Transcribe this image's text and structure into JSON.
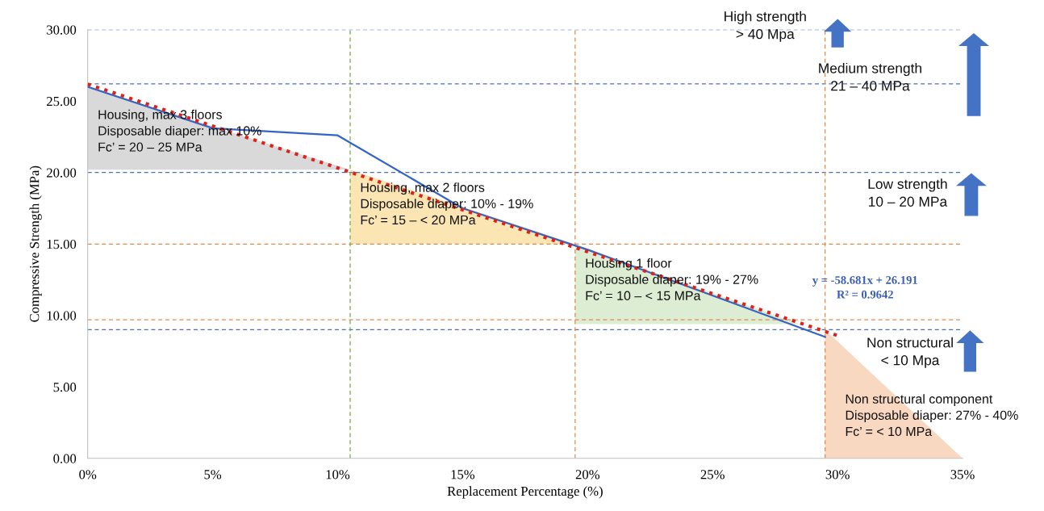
{
  "chart_data": {
    "type": "line",
    "xlabel": "Replacement Percentage (%)",
    "ylabel": "Compressive Strength (MPa)",
    "xlim": [
      0,
      35
    ],
    "xticks": [
      {
        "value": 0,
        "label": "0%"
      },
      {
        "value": 5,
        "label": "5%"
      },
      {
        "value": 10,
        "label": "10%"
      },
      {
        "value": 15,
        "label": "15%"
      },
      {
        "value": 20,
        "label": "20%"
      },
      {
        "value": 25,
        "label": "25%"
      },
      {
        "value": 30,
        "label": "30%"
      },
      {
        "value": 35,
        "label": "35%"
      }
    ],
    "ylim": [
      0,
      30
    ],
    "yticks": [
      {
        "value": 0,
        "label": "0.00"
      },
      {
        "value": 5,
        "label": "5.00"
      },
      {
        "value": 10,
        "label": "10.00"
      },
      {
        "value": 15,
        "label": "15.00"
      },
      {
        "value": 20,
        "label": "20.00"
      },
      {
        "value": 25,
        "label": "25.00"
      },
      {
        "value": 30,
        "label": "30.00"
      }
    ],
    "grid": false,
    "series": [
      {
        "type": "area",
        "color": "#d9d9d9",
        "x": [
          0,
          0,
          10.5
        ],
        "values": [
          26.0,
          20.2,
          20.2
        ]
      },
      {
        "type": "area",
        "color": "#fbe5b3",
        "x": [
          10.5,
          10.5,
          19.5
        ],
        "values": [
          20.2,
          15.0,
          15.0
        ]
      },
      {
        "type": "area",
        "color": "#dcedd3",
        "x": [
          19.5,
          19.5,
          28.5
        ],
        "values": [
          15.0,
          9.4,
          9.4
        ]
      },
      {
        "type": "area",
        "color": "#f9d8c2",
        "x": [
          29.5,
          29.5,
          35
        ],
        "values": [
          9.0,
          0,
          0
        ]
      },
      {
        "color": "#3464c4",
        "line_style": "solid",
        "x": [
          0,
          5,
          10,
          15,
          20,
          29.5
        ],
        "values": [
          26.0,
          23.1,
          22.6,
          17.5,
          14.6,
          8.5
        ]
      },
      {
        "color": "#e0201b",
        "line_style": "dotted",
        "x": [
          0,
          30
        ],
        "values": [
          26.19,
          8.59
        ]
      }
    ],
    "ref_lines": [
      {
        "axis": "y",
        "value": 30,
        "color": "#4a6fc0",
        "line_style": "dashed"
      },
      {
        "axis": "y",
        "value": 26.2,
        "color": "#4a6fc0",
        "line_style": "dashed"
      },
      {
        "axis": "y",
        "value": 20,
        "color": "#4a6fc0",
        "line_style": "dashed"
      },
      {
        "axis": "y",
        "value": 15,
        "color": "#e08a4a",
        "line_style": "dashed"
      },
      {
        "axis": "y",
        "value": 9.7,
        "color": "#e08a4a",
        "line_style": "dashed"
      },
      {
        "axis": "y",
        "value": 9.0,
        "color": "#4a6fc0",
        "line_style": "dashed"
      },
      {
        "axis": "x",
        "value": 10.5,
        "color": "#70ad47",
        "line_style": "dashed"
      },
      {
        "axis": "x",
        "value": 19.5,
        "color": "#e08a4a",
        "line_style": "dashed"
      },
      {
        "axis": "x",
        "value": 29.5,
        "color": "#e08a4a",
        "line_style": "dashed"
      }
    ],
    "annotations": [
      "Housing, max 3 floors\nDisposable diaper: max 10%\nFc’ = 20 – 25 MPa",
      "Housing, max 2 floors\nDisposable diaper: 10% - 19%\nFc’ = 15 – < 20 MPa",
      "Housing 1 floor\nDisposable diaper: 19% - 27%\nFc’ = 10 – < 15 MPa",
      "Non structural component\nDisposable diaper: 27% - 40%\nFc’ = < 10 MPa",
      "y = -58.681x + 26.191\nR² = 0.9642",
      "High strength\n> 40 Mpa",
      "Medium strength\n21 – 40 MPa",
      "Low strength\n10 – 20 MPa",
      "Non structural\n< 10 Mpa"
    ]
  }
}
